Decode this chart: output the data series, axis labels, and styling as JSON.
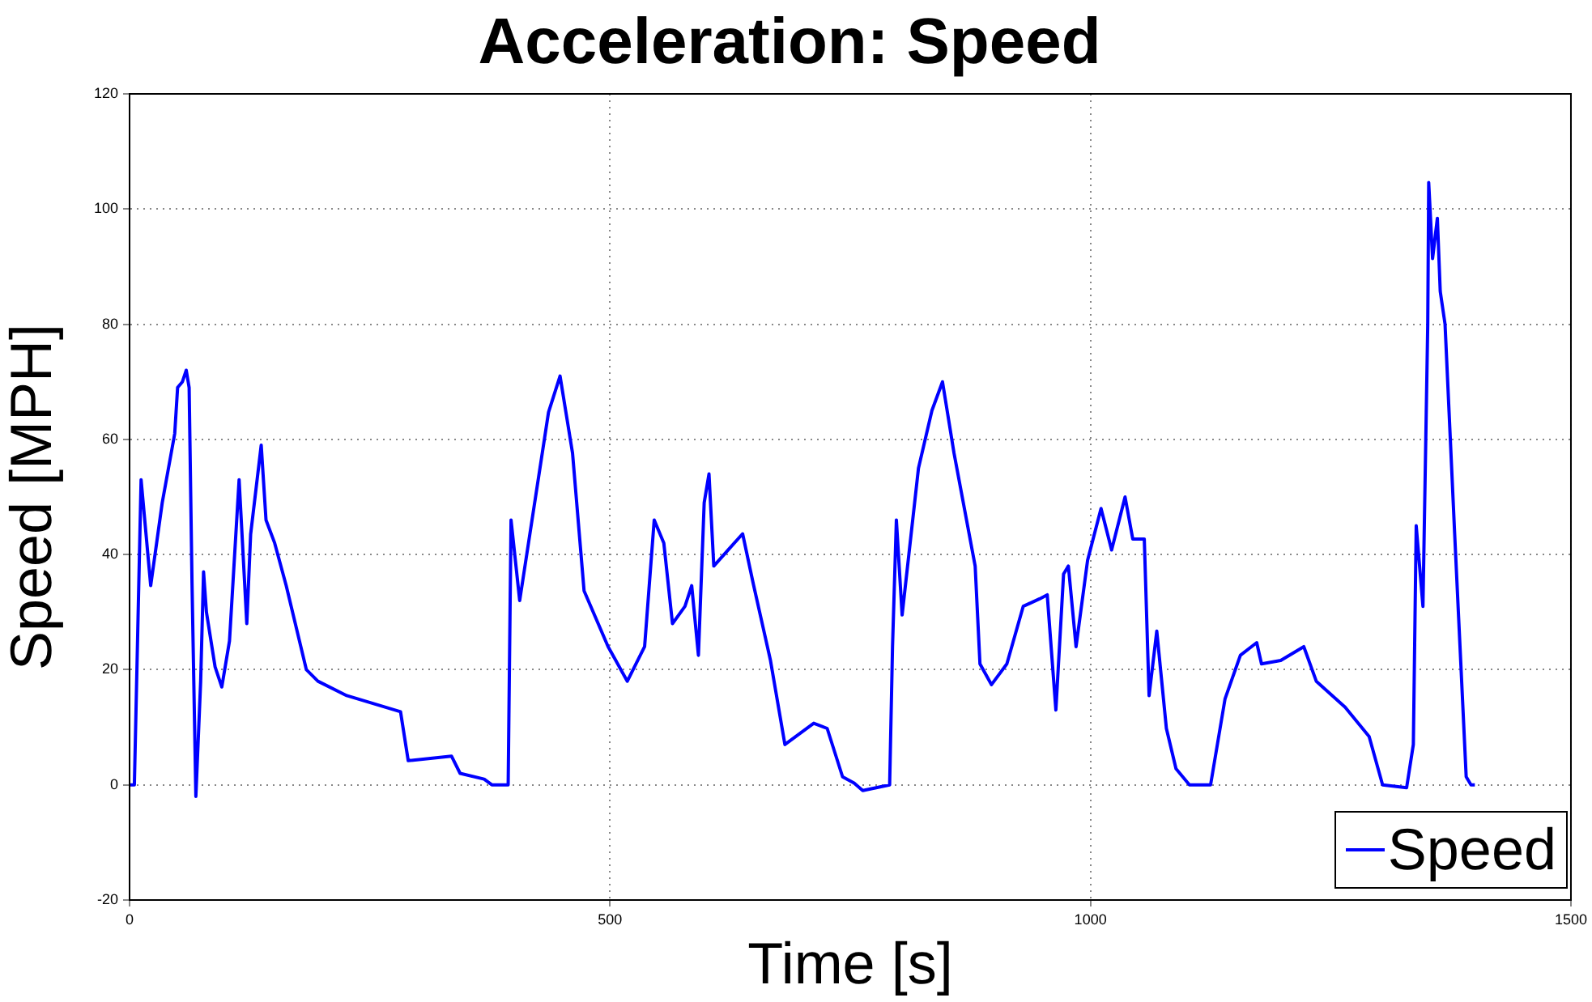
{
  "chart_data": {
    "type": "line",
    "title": "Acceleration: Speed",
    "xlabel": "Time [s]",
    "ylabel": "Speed [MPH]",
    "xlim": [
      0,
      1500
    ],
    "xticks": [
      0,
      500,
      1000,
      1500
    ],
    "ylim": [
      -20,
      120
    ],
    "yticks": [
      -20,
      0,
      20,
      40,
      60,
      80,
      100,
      120
    ],
    "grid": true,
    "legend": "bottom right",
    "marker": "none",
    "line_style": "solid",
    "series": [
      {
        "name": "Speed",
        "color": "#0000ff",
        "x": [
          0,
          5,
          12,
          22,
          34,
          47,
          50,
          55,
          59,
          62,
          65,
          69,
          74,
          77,
          80,
          89,
          96,
          104,
          114,
          122,
          126,
          137,
          142,
          151,
          163,
          184,
          196,
          226,
          282,
          290,
          335,
          344,
          369,
          377,
          394,
          397,
          406,
          436,
          448,
          461,
          473,
          498,
          518,
          536,
          546,
          556,
          565,
          578,
          585,
          592,
          598,
          603,
          608,
          623,
          638,
          649,
          667,
          682,
          712,
          726,
          742,
          754,
          763,
          791,
          794,
          798,
          804,
          821,
          835,
          846,
          858,
          880,
          885,
          897,
          913,
          930,
          947,
          955,
          964,
          972,
          977,
          985,
          997,
          1011,
          1022,
          1036,
          1044,
          1056,
          1061,
          1069,
          1079,
          1089,
          1103,
          1125,
          1140,
          1156,
          1173,
          1178,
          1198,
          1222,
          1235,
          1265,
          1290,
          1304,
          1329,
          1336,
          1339,
          1346,
          1351,
          1352,
          1356,
          1361,
          1364,
          1369,
          1379,
          1391,
          1396,
          1400
        ],
        "values": [
          0,
          0,
          53,
          34.6,
          49,
          61,
          69,
          70,
          72,
          69,
          35,
          -2,
          18,
          37,
          30,
          20.5,
          17,
          25,
          53,
          28,
          43.5,
          59,
          46,
          42,
          34.6,
          20,
          18,
          15.5,
          12.7,
          4.2,
          5,
          2,
          1,
          0,
          0,
          46,
          32,
          64.7,
          71,
          57.6,
          33.7,
          24,
          18,
          24,
          46,
          42,
          28,
          31,
          34.6,
          22.5,
          49,
          54,
          38,
          40.8,
          43.6,
          35,
          21.6,
          7,
          10.7,
          9.8,
          1.4,
          0.3,
          -1,
          0,
          24,
          46,
          29.5,
          55,
          65,
          70,
          57.6,
          38,
          21,
          17.4,
          21,
          31,
          32.3,
          33,
          13,
          36.6,
          38,
          24,
          39,
          48,
          40.8,
          50,
          42.7,
          42.7,
          15.5,
          26.7,
          9.8,
          2.8,
          0,
          0,
          14.9,
          22.5,
          24.7,
          21,
          21.6,
          24,
          18,
          13.5,
          8.4,
          0,
          -0.5,
          7,
          45,
          31,
          80,
          104.6,
          91.4,
          98.4,
          85.7,
          80,
          43.6,
          1.4,
          0,
          0
        ]
      }
    ]
  }
}
